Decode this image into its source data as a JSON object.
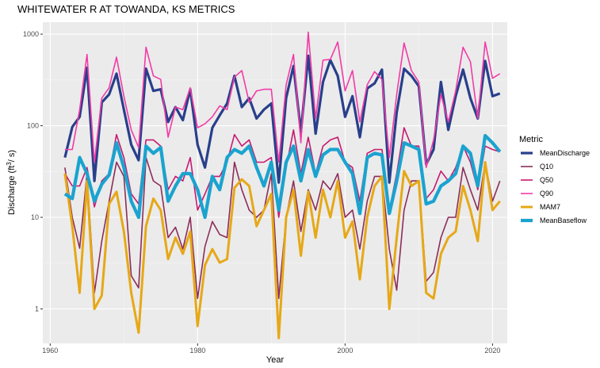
{
  "chart_data": {
    "type": "line",
    "title": "WHITEWATER R AT TOWANDA, KS  METRICS",
    "xlabel": "Year",
    "ylabel": "Discharge (ft",
    "ylabel_sup": "3",
    "ylabel_tail": "/ s)",
    "yscale": "log",
    "xlim": [
      1959,
      2022
    ],
    "ylim": [
      0.42,
      1350
    ],
    "x_ticks": [
      1960,
      1980,
      2000,
      2020
    ],
    "x_tick_labels": [
      "1960",
      "1980",
      "2000",
      "2020"
    ],
    "y_ticks": [
      1,
      10,
      100,
      1000
    ],
    "y_tick_labels": [
      "1",
      "10",
      "100",
      "1000"
    ],
    "grid": true,
    "legend": {
      "title": "Metric",
      "position": "right"
    },
    "x": [
      1962,
      1963,
      1964,
      1965,
      1966,
      1967,
      1968,
      1969,
      1970,
      1971,
      1972,
      1973,
      1974,
      1975,
      1976,
      1977,
      1978,
      1979,
      1980,
      1981,
      1982,
      1983,
      1984,
      1985,
      1986,
      1987,
      1988,
      1989,
      1990,
      1991,
      1992,
      1993,
      1994,
      1995,
      1996,
      1997,
      1998,
      1999,
      2000,
      2001,
      2002,
      2003,
      2004,
      2005,
      2006,
      2007,
      2008,
      2009,
      2010,
      2011,
      2012,
      2013,
      2014,
      2015,
      2016,
      2017,
      2018,
      2019,
      2020,
      2021
    ],
    "series": [
      {
        "name": "MeanDischarge",
        "color": "#283f8b",
        "width": 3.2,
        "values": [
          45,
          97,
          125,
          430,
          25,
          180,
          220,
          370,
          150,
          62,
          42,
          420,
          240,
          250,
          110,
          160,
          115,
          250,
          62,
          35,
          95,
          130,
          175,
          350,
          160,
          200,
          120,
          150,
          175,
          24,
          200,
          450,
          85,
          580,
          82,
          300,
          520,
          350,
          125,
          210,
          75,
          255,
          290,
          410,
          24,
          140,
          420,
          350,
          270,
          38,
          55,
          300,
          90,
          210,
          410,
          200,
          120,
          510,
          210,
          225
        ]
      },
      {
        "name": "Q10",
        "color": "#8c2d59",
        "width": 1.6,
        "values": [
          35,
          10,
          4.6,
          30,
          1.5,
          5.5,
          15,
          40,
          28,
          2.3,
          1.7,
          45,
          25,
          22,
          6,
          7.8,
          4.5,
          10,
          1.3,
          4.8,
          9,
          6.5,
          6,
          40,
          20,
          12,
          10,
          12,
          30,
          1.3,
          10,
          25,
          7,
          20,
          12,
          25,
          20,
          30,
          10,
          12,
          4.5,
          15,
          28,
          28,
          4.5,
          1.6,
          12,
          25,
          25,
          2,
          2.5,
          6,
          10,
          10,
          35,
          20,
          12,
          40,
          15,
          25
        ]
      },
      {
        "name": "Q50",
        "color": "#c61a72",
        "width": 1.6,
        "values": [
          30,
          22,
          22,
          35,
          13,
          25,
          30,
          80,
          45,
          18,
          14,
          70,
          70,
          60,
          20,
          28,
          25,
          45,
          12,
          18,
          28,
          28,
          40,
          80,
          60,
          70,
          40,
          40,
          45,
          10,
          35,
          90,
          30,
          75,
          30,
          60,
          70,
          75,
          40,
          35,
          15,
          50,
          55,
          55,
          12,
          30,
          95,
          60,
          60,
          16,
          20,
          32,
          25,
          35,
          60,
          40,
          20,
          60,
          55,
          52
        ]
      },
      {
        "name": "Q90",
        "color": "#f23ba6",
        "width": 1.6,
        "values": [
          55,
          55,
          150,
          600,
          40,
          200,
          260,
          560,
          210,
          90,
          58,
          720,
          350,
          320,
          75,
          160,
          150,
          260,
          95,
          105,
          125,
          165,
          150,
          340,
          400,
          180,
          240,
          250,
          250,
          40,
          280,
          600,
          65,
          1050,
          120,
          520,
          530,
          820,
          240,
          400,
          110,
          280,
          390,
          320,
          45,
          220,
          800,
          400,
          300,
          35,
          70,
          220,
          110,
          240,
          720,
          500,
          120,
          820,
          330,
          370
        ]
      },
      {
        "name": "MAM7",
        "color": "#e6a817",
        "width": 3.0,
        "values": [
          30,
          8,
          1.5,
          25,
          1,
          1.4,
          14,
          19,
          7,
          1.5,
          0.55,
          8,
          16,
          12,
          3.5,
          6,
          4,
          7,
          0.65,
          3,
          4.5,
          3.2,
          3.5,
          21,
          26,
          22,
          8,
          12,
          18,
          0.48,
          10,
          20,
          3.8,
          19,
          6,
          20,
          10,
          25,
          6,
          9,
          2.1,
          10,
          22,
          28,
          1,
          6,
          32,
          22,
          25,
          1.5,
          1.3,
          4,
          6,
          7,
          22,
          12,
          5.5,
          40,
          12,
          15
        ]
      },
      {
        "name": "MeanBaseflow",
        "color": "#1aa3cf",
        "width": 4.2,
        "values": [
          18,
          16,
          45,
          30,
          15,
          23,
          29,
          65,
          35,
          15,
          10,
          60,
          50,
          58,
          15,
          22,
          30,
          30,
          20,
          10,
          28,
          20,
          45,
          55,
          50,
          60,
          35,
          22,
          40,
          12,
          40,
          60,
          25,
          55,
          28,
          48,
          55,
          55,
          40,
          30,
          11,
          45,
          50,
          48,
          11,
          25,
          65,
          60,
          55,
          14,
          15,
          22,
          25,
          30,
          60,
          50,
          22,
          78,
          65,
          52
        ]
      }
    ]
  }
}
